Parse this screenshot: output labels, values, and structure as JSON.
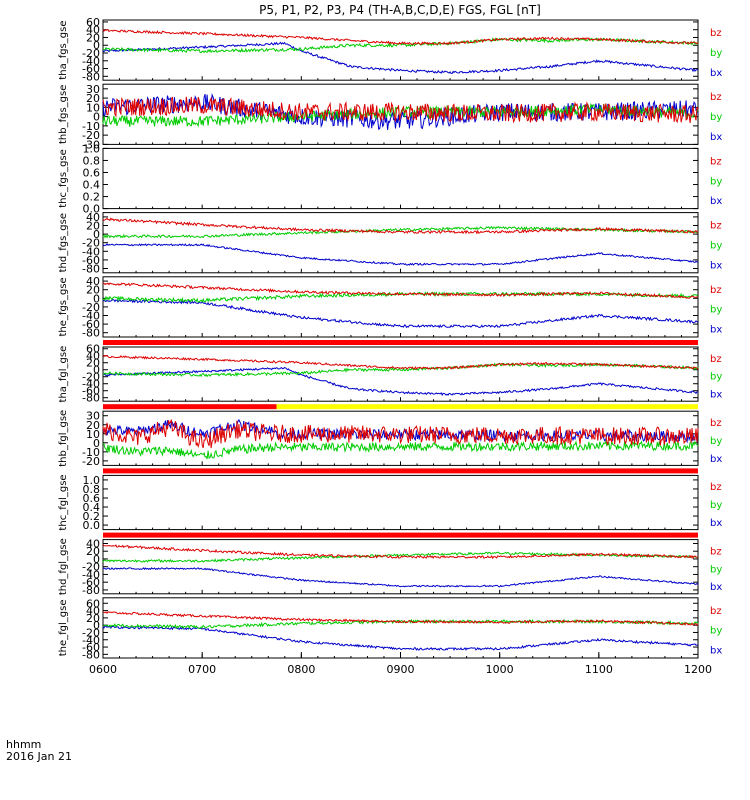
{
  "title": "P5, P1, P2, P3, P4 (TH-A,B,C,D,E) FGS, FGL [nT]",
  "time_label": "hhmm",
  "date_label": "2016 Jan 21",
  "colors": {
    "bx": "#0000cc",
    "by": "#00cc00",
    "bz": "#dd0000",
    "flag_red": "#ff0000",
    "flag_yellow": "#ffff00",
    "frame": "#000000"
  },
  "chart_data": {
    "type": "line",
    "title": "P5, P1, P2, P3, P4 (TH-A,B,C,D,E) FGS, FGL [nT]",
    "x_ticks": [
      "0600",
      "0700",
      "0800",
      "0900",
      "1000",
      "1100",
      "1200"
    ],
    "x_range": [
      "0600",
      "1200"
    ],
    "series_names": [
      "bz",
      "by",
      "bx"
    ],
    "panels": [
      {
        "ylabel": "tha_fgs_gse",
        "ylim": [
          -90,
          65
        ],
        "yticks": [
          "60",
          "40",
          "20",
          "0",
          "-20",
          "-40",
          "-60",
          "-80"
        ],
        "flag": "",
        "series": [
          {
            "name": "bz",
            "x": [
              "0600",
              "0700",
              "0800",
              "0830",
              "0900",
              "0930",
              "1000",
              "1030",
              "1100",
              "1200"
            ],
            "values": [
              38,
              30,
              20,
              12,
              5,
              5,
              15,
              18,
              15,
              5
            ],
            "noise": 3
          },
          {
            "name": "by",
            "x": [
              "0600",
              "0700",
              "0800",
              "0830",
              "0900",
              "0930",
              "1000",
              "1030",
              "1100",
              "1200"
            ],
            "values": [
              -10,
              -15,
              -10,
              0,
              0,
              5,
              15,
              12,
              15,
              5
            ],
            "noise": 4
          },
          {
            "name": "bx",
            "x": [
              "0600",
              "0700",
              "0750",
              "0800",
              "0830",
              "0900",
              "0930",
              "1000",
              "1030",
              "1100",
              "1200"
            ],
            "values": [
              -15,
              -5,
              5,
              -15,
              -55,
              -65,
              -70,
              -65,
              -55,
              -40,
              -65
            ],
            "noise": 3
          }
        ]
      },
      {
        "ylabel": "thb_fgs_gse",
        "ylim": [
          -30,
          35
        ],
        "yticks": [
          "30",
          "20",
          "10",
          "0",
          "-10",
          "-20",
          "-30"
        ],
        "flag": "",
        "series": [
          {
            "name": "bz",
            "x": [
              "0600",
              "0700",
              "0800",
              "0900",
              "1000",
              "1100",
              "1200"
            ],
            "values": [
              10,
              12,
              5,
              5,
              3,
              5,
              2
            ],
            "noise": 10
          },
          {
            "name": "by",
            "x": [
              "0600",
              "0700",
              "0800",
              "0900",
              "1000",
              "1100",
              "1200"
            ],
            "values": [
              -5,
              -5,
              0,
              5,
              5,
              8,
              3
            ],
            "noise": 6
          },
          {
            "name": "bx",
            "x": [
              "0600",
              "0700",
              "0800",
              "0900",
              "1000",
              "1100",
              "1200"
            ],
            "values": [
              10,
              15,
              0,
              -5,
              5,
              5,
              8
            ],
            "noise": 10
          }
        ]
      },
      {
        "ylabel": "thc_fgs_gse",
        "ylim": [
          0,
          1
        ],
        "yticks": [
          "1.0",
          "0.8",
          "0.6",
          "0.4",
          "0.2",
          "0.0"
        ],
        "flag": "",
        "series": []
      },
      {
        "ylabel": "thd_fgs_gse",
        "ylim": [
          -90,
          50
        ],
        "yticks": [
          "40",
          "20",
          "0",
          "-20",
          "-40",
          "-60",
          "-80"
        ],
        "flag": "",
        "series": [
          {
            "name": "bz",
            "x": [
              "0600",
              "0700",
              "0800",
              "0900",
              "1000",
              "1100",
              "1200"
            ],
            "values": [
              35,
              22,
              10,
              5,
              5,
              12,
              5
            ],
            "noise": 3
          },
          {
            "name": "by",
            "x": [
              "0600",
              "0700",
              "0800",
              "0900",
              "1000",
              "1100",
              "1200"
            ],
            "values": [
              -5,
              -5,
              3,
              10,
              15,
              10,
              5
            ],
            "noise": 3
          },
          {
            "name": "bx",
            "x": [
              "0600",
              "0700",
              "0800",
              "0900",
              "1000",
              "1100",
              "1200"
            ],
            "values": [
              -25,
              -25,
              -55,
              -70,
              -70,
              -45,
              -65
            ],
            "noise": 2
          }
        ]
      },
      {
        "ylabel": "the_fgs_gse",
        "ylim": [
          -90,
          50
        ],
        "yticks": [
          "40",
          "20",
          "0",
          "-20",
          "-40",
          "-60",
          "-80"
        ],
        "flag": "",
        "series": [
          {
            "name": "bz",
            "x": [
              "0600",
              "0700",
              "0800",
              "0900",
              "1000",
              "1100",
              "1200"
            ],
            "values": [
              35,
              25,
              15,
              10,
              8,
              12,
              2
            ],
            "noise": 3
          },
          {
            "name": "by",
            "x": [
              "0600",
              "0700",
              "0800",
              "0900",
              "1000",
              "1100",
              "1200"
            ],
            "values": [
              0,
              -5,
              5,
              10,
              10,
              10,
              5
            ],
            "noise": 4
          },
          {
            "name": "bx",
            "x": [
              "0600",
              "0700",
              "0800",
              "0900",
              "1000",
              "1100",
              "1200"
            ],
            "values": [
              -5,
              -10,
              -45,
              -65,
              -65,
              -40,
              -55
            ],
            "noise": 3
          }
        ]
      },
      {
        "ylabel": "tha_fgl_gse",
        "ylim": [
          -90,
          65
        ],
        "yticks": [
          "60",
          "40",
          "20",
          "0",
          "-20",
          "-40",
          "-60",
          "-80"
        ],
        "flag": "red",
        "series": [
          {
            "name": "bz",
            "x": [
              "0600",
              "0700",
              "0800",
              "0830",
              "0900",
              "0930",
              "1000",
              "1030",
              "1100",
              "1200"
            ],
            "values": [
              38,
              30,
              20,
              12,
              5,
              5,
              15,
              18,
              15,
              5
            ],
            "noise": 3
          },
          {
            "name": "by",
            "x": [
              "0600",
              "0700",
              "0800",
              "0830",
              "0900",
              "0930",
              "1000",
              "1030",
              "1100",
              "1200"
            ],
            "values": [
              -10,
              -15,
              -10,
              0,
              0,
              5,
              15,
              12,
              15,
              5
            ],
            "noise": 4
          },
          {
            "name": "bx",
            "x": [
              "0600",
              "0700",
              "0750",
              "0800",
              "0830",
              "0900",
              "0930",
              "1000",
              "1030",
              "1100",
              "1200"
            ],
            "values": [
              -15,
              -5,
              5,
              -15,
              -55,
              -65,
              -70,
              -65,
              -55,
              -40,
              -65
            ],
            "noise": 3
          }
        ]
      },
      {
        "ylabel": "thb_fgl_gse",
        "ylim": [
          -25,
          35
        ],
        "yticks": [
          "30",
          "20",
          "10",
          "0",
          "-10",
          "-20"
        ],
        "flag": "red-yellow",
        "flag_split": "0745",
        "series": [
          {
            "name": "bz",
            "x": [
              "0600",
              "0620",
              "0640",
              "0700",
              "0720",
              "0740",
              "0745",
              "1200"
            ],
            "values": [
              15,
              5,
              18,
              0,
              15,
              10,
              10,
              7
            ],
            "noise": 10
          },
          {
            "name": "by",
            "x": [
              "0600",
              "0620",
              "0640",
              "0700",
              "0720",
              "0740",
              "0745",
              "1200"
            ],
            "values": [
              -5,
              -10,
              -8,
              -15,
              -8,
              -5,
              -5,
              -3
            ],
            "noise": 5
          },
          {
            "name": "bx",
            "x": [
              "0600",
              "0620",
              "0640",
              "0700",
              "0720",
              "0740",
              "0745",
              "1200"
            ],
            "values": [
              15,
              12,
              20,
              10,
              20,
              15,
              10,
              7
            ],
            "noise": 6
          }
        ]
      },
      {
        "ylabel": "thc_fgl_gse",
        "ylim": [
          -0.1,
          1.1
        ],
        "yticks": [
          "1.0",
          "0.8",
          "0.6",
          "0.4",
          "0.2",
          "0.0"
        ],
        "flag": "red",
        "series": []
      },
      {
        "ylabel": "thd_fgl_gse",
        "ylim": [
          -90,
          50
        ],
        "yticks": [
          "40",
          "20",
          "0",
          "-20",
          "-40",
          "-60",
          "-80"
        ],
        "flag": "red",
        "series": [
          {
            "name": "bz",
            "x": [
              "0600",
              "0700",
              "0800",
              "0900",
              "1000",
              "1100",
              "1200"
            ],
            "values": [
              35,
              22,
              10,
              5,
              5,
              12,
              5
            ],
            "noise": 3
          },
          {
            "name": "by",
            "x": [
              "0600",
              "0700",
              "0800",
              "0900",
              "1000",
              "1100",
              "1200"
            ],
            "values": [
              -5,
              -5,
              3,
              10,
              15,
              10,
              5
            ],
            "noise": 3
          },
          {
            "name": "bx",
            "x": [
              "0600",
              "0700",
              "0800",
              "0900",
              "1000",
              "1100",
              "1200"
            ],
            "values": [
              -25,
              -25,
              -55,
              -70,
              -70,
              -45,
              -65
            ],
            "noise": 2
          }
        ]
      },
      {
        "ylabel": "the_fgl_gse",
        "ylim": [
          -90,
          75
        ],
        "yticks": [
          "60",
          "40",
          "20",
          "0",
          "-20",
          "-40",
          "-60",
          "-80"
        ],
        "flag": "",
        "series": [
          {
            "name": "bz",
            "x": [
              "0600",
              "0700",
              "0800",
              "0900",
              "1000",
              "1100",
              "1200"
            ],
            "values": [
              35,
              25,
              15,
              10,
              8,
              12,
              2
            ],
            "noise": 3
          },
          {
            "name": "by",
            "x": [
              "0600",
              "0700",
              "0800",
              "0900",
              "1000",
              "1100",
              "1200"
            ],
            "values": [
              0,
              -5,
              5,
              10,
              10,
              10,
              5
            ],
            "noise": 4
          },
          {
            "name": "bx",
            "x": [
              "0600",
              "0700",
              "0800",
              "0900",
              "1000",
              "1100",
              "1200"
            ],
            "values": [
              -5,
              -10,
              -45,
              -65,
              -65,
              -40,
              -55
            ],
            "noise": 3
          }
        ]
      }
    ]
  }
}
